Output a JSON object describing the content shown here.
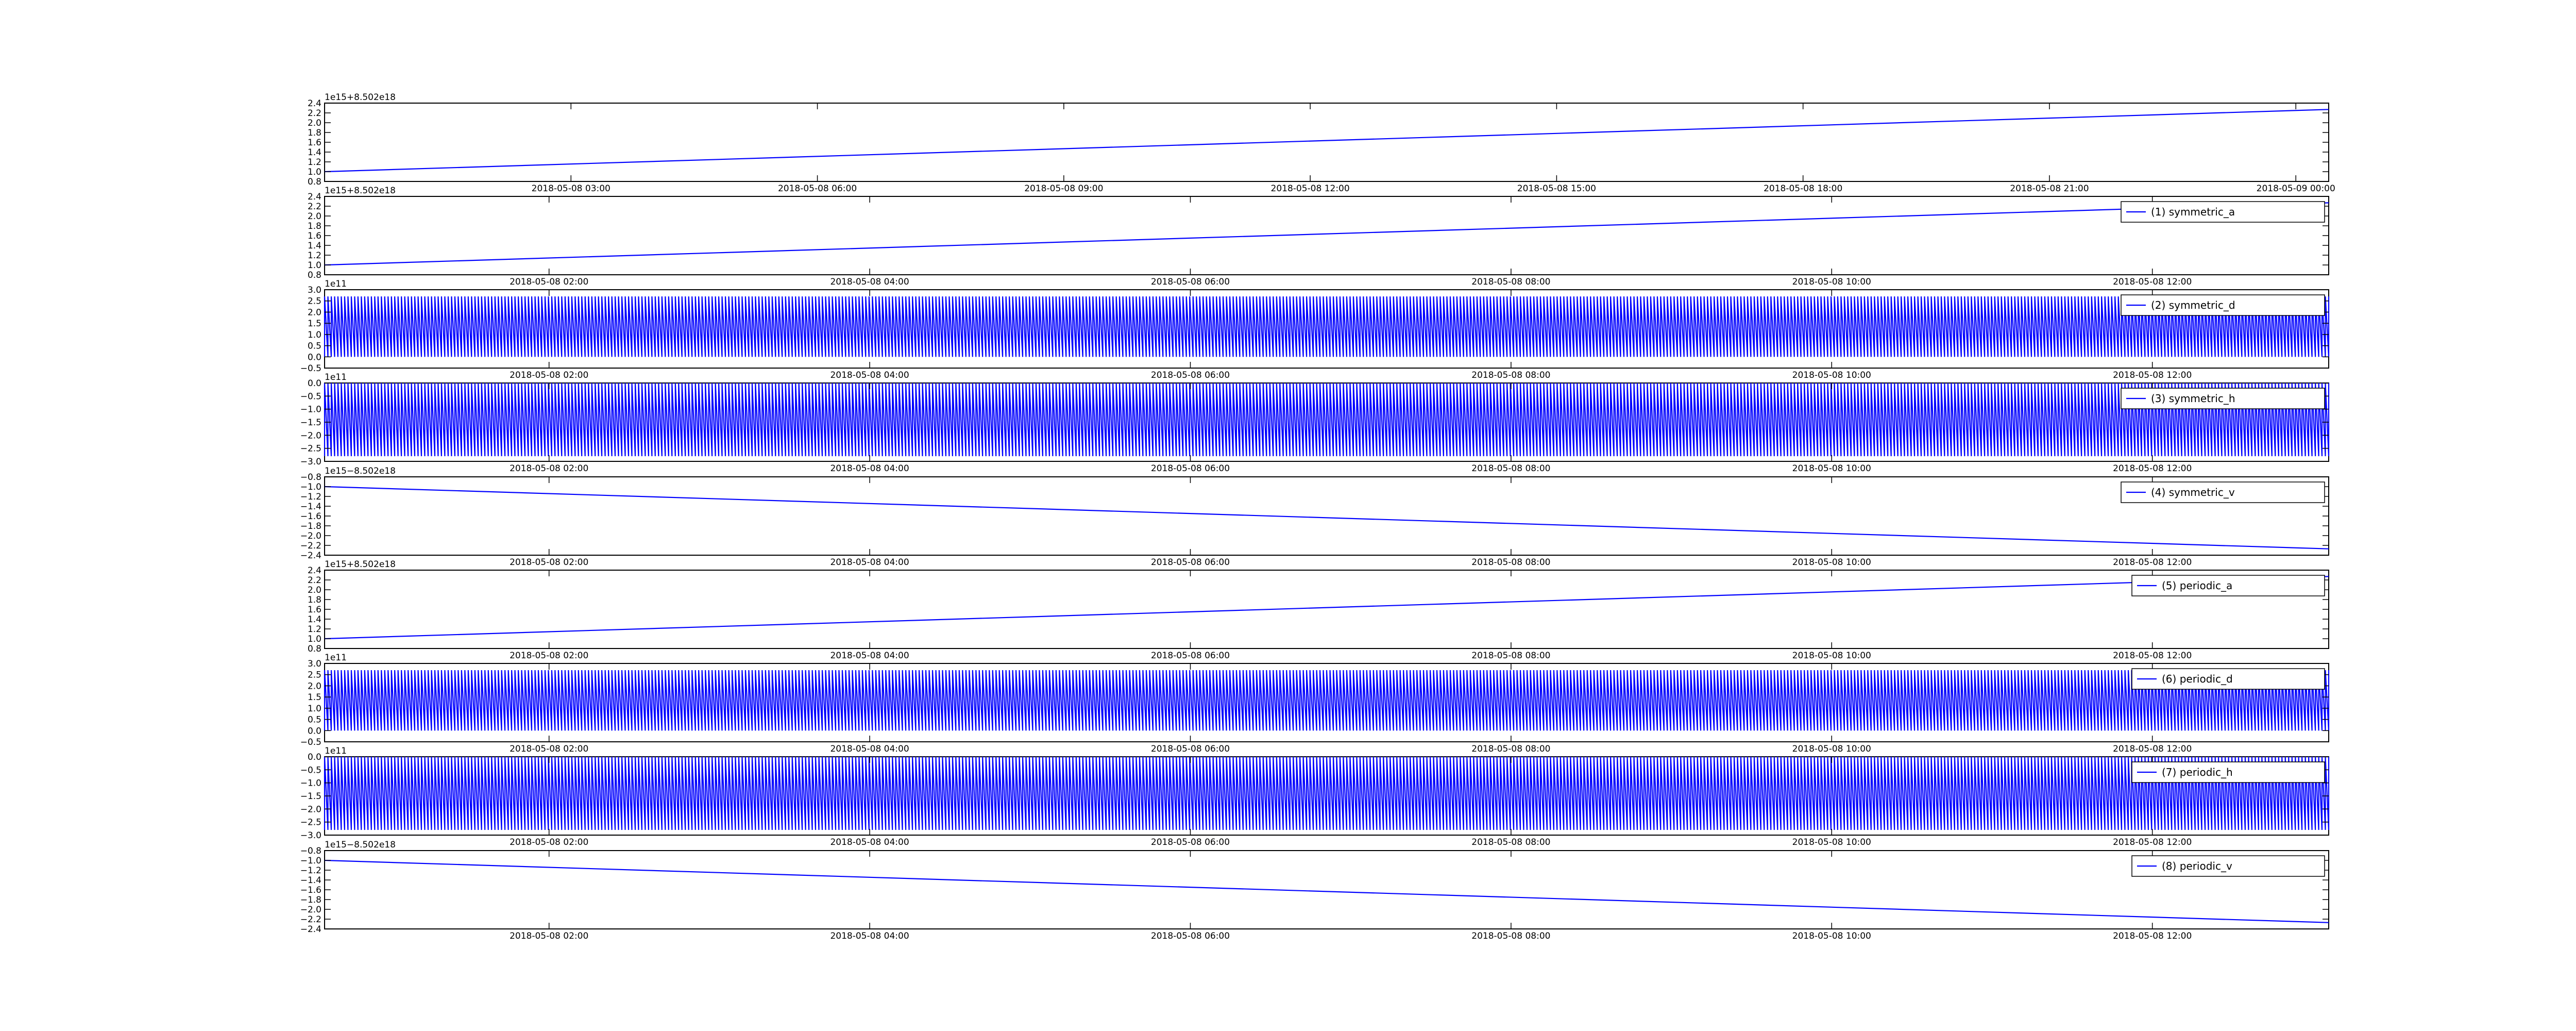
{
  "chart_data": [
    {
      "type": "line",
      "offset_label": "1e15+8.502e18",
      "y_ticks": [
        "0.8",
        "1.0",
        "1.2",
        "1.4",
        "1.6",
        "1.8",
        "2.0",
        "2.2",
        "2.4"
      ],
      "ylim": [
        0.8,
        2.4
      ],
      "x_ticks": [
        "2018-05-08 03:00",
        "2018-05-08 06:00",
        "2018-05-08 09:00",
        "2018-05-08 12:00",
        "2018-05-08 15:00",
        "2018-05-08 18:00",
        "2018-05-08 21:00",
        "2018-05-09 00:00"
      ],
      "xlim": [
        "2018-05-08 00:00",
        "2018-05-09 00:24"
      ],
      "series": [
        {
          "x": [
            "2018-05-08 00:00",
            "2018-05-09 00:24"
          ],
          "y": [
            1.0,
            2.27
          ]
        }
      ],
      "legend": null
    },
    {
      "type": "line",
      "offset_label": "1e15+8.502e18",
      "y_ticks": [
        "0.8",
        "1.0",
        "1.2",
        "1.4",
        "1.6",
        "1.8",
        "2.0",
        "2.2",
        "2.4"
      ],
      "ylim": [
        0.8,
        2.4
      ],
      "x_ticks": [
        "2018-05-08 02:00",
        "2018-05-08 04:00",
        "2018-05-08 06:00",
        "2018-05-08 08:00",
        "2018-05-08 10:00",
        "2018-05-08 12:00"
      ],
      "xlim": [
        "2018-05-08 00:36",
        "2018-05-08 13:06"
      ],
      "series": [
        {
          "name": "(1) symmetric_a",
          "x": [
            "2018-05-08 00:36",
            "2018-05-08 13:06"
          ],
          "y": [
            1.0,
            2.27
          ]
        }
      ],
      "legend": {
        "label": "(1) symmetric_a",
        "position": "top-right"
      }
    },
    {
      "type": "line",
      "offset_label": "1e11",
      "y_ticks": [
        "−0.5",
        "0.0",
        "0.5",
        "1.0",
        "1.5",
        "2.0",
        "2.5",
        "3.0"
      ],
      "ylim": [
        -0.5,
        3.0
      ],
      "x_ticks": [
        "2018-05-08 02:00",
        "2018-05-08 04:00",
        "2018-05-08 06:00",
        "2018-05-08 08:00",
        "2018-05-08 10:00",
        "2018-05-08 12:00"
      ],
      "xlim": [
        "2018-05-08 00:36",
        "2018-05-08 13:06"
      ],
      "series": [
        {
          "name": "(2) symmetric_d",
          "pattern": "dense oscillation between 0 and 2.7",
          "range": [
            0.0,
            2.7
          ]
        }
      ],
      "legend": {
        "label": "(2) symmetric_d",
        "position": "top-right"
      }
    },
    {
      "type": "line",
      "offset_label": "1e11",
      "y_ticks": [
        "−3.0",
        "−2.5",
        "−2.0",
        "−1.5",
        "−1.0",
        "−0.5",
        "0.0"
      ],
      "ylim": [
        -3.0,
        0.0
      ],
      "x_ticks": [
        "2018-05-08 02:00",
        "2018-05-08 04:00",
        "2018-05-08 06:00",
        "2018-05-08 08:00",
        "2018-05-08 10:00",
        "2018-05-08 12:00"
      ],
      "xlim": [
        "2018-05-08 00:36",
        "2018-05-08 13:06"
      ],
      "series": [
        {
          "name": "(3) symmetric_h",
          "pattern": "dense oscillation between -2.8 and 0",
          "range": [
            -2.8,
            0.0
          ]
        }
      ],
      "legend": {
        "label": "(3) symmetric_h",
        "position": "top-right"
      }
    },
    {
      "type": "line",
      "offset_label": "1e15−8.502e18",
      "y_ticks": [
        "−2.4",
        "−2.2",
        "−2.0",
        "−1.8",
        "−1.6",
        "−1.4",
        "−1.2",
        "−1.0",
        "−0.8"
      ],
      "ylim": [
        -2.4,
        -0.8
      ],
      "x_ticks": [
        "2018-05-08 02:00",
        "2018-05-08 04:00",
        "2018-05-08 06:00",
        "2018-05-08 08:00",
        "2018-05-08 10:00",
        "2018-05-08 12:00"
      ],
      "xlim": [
        "2018-05-08 00:36",
        "2018-05-08 13:06"
      ],
      "series": [
        {
          "name": "(4) symmetric_v",
          "x": [
            "2018-05-08 00:36",
            "2018-05-08 13:06"
          ],
          "y": [
            -1.0,
            -2.27
          ]
        }
      ],
      "legend": {
        "label": "(4) symmetric_v",
        "position": "top-right"
      }
    },
    {
      "type": "line",
      "offset_label": "1e15+8.502e18",
      "y_ticks": [
        "0.8",
        "1.0",
        "1.2",
        "1.4",
        "1.6",
        "1.8",
        "2.0",
        "2.2",
        "2.4"
      ],
      "ylim": [
        0.8,
        2.4
      ],
      "x_ticks": [
        "2018-05-08 02:00",
        "2018-05-08 04:00",
        "2018-05-08 06:00",
        "2018-05-08 08:00",
        "2018-05-08 10:00",
        "2018-05-08 12:00"
      ],
      "xlim": [
        "2018-05-08 00:36",
        "2018-05-08 13:06"
      ],
      "series": [
        {
          "name": "(5) periodic_a",
          "x": [
            "2018-05-08 00:36",
            "2018-05-08 13:06"
          ],
          "y": [
            1.0,
            2.27
          ]
        }
      ],
      "legend": {
        "label": "(5) periodic_a",
        "position": "top-right"
      }
    },
    {
      "type": "line",
      "offset_label": "1e11",
      "y_ticks": [
        "−0.5",
        "0.0",
        "0.5",
        "1.0",
        "1.5",
        "2.0",
        "2.5",
        "3.0"
      ],
      "ylim": [
        -0.5,
        3.0
      ],
      "x_ticks": [
        "2018-05-08 02:00",
        "2018-05-08 04:00",
        "2018-05-08 06:00",
        "2018-05-08 08:00",
        "2018-05-08 10:00",
        "2018-05-08 12:00"
      ],
      "xlim": [
        "2018-05-08 00:36",
        "2018-05-08 13:06"
      ],
      "series": [
        {
          "name": "(6) periodic_d",
          "pattern": "dense oscillation between 0 and 2.7",
          "range": [
            0.0,
            2.7
          ]
        }
      ],
      "legend": {
        "label": "(6) periodic_d",
        "position": "top-right"
      }
    },
    {
      "type": "line",
      "offset_label": "1e11",
      "y_ticks": [
        "−3.0",
        "−2.5",
        "−2.0",
        "−1.5",
        "−1.0",
        "−0.5",
        "0.0"
      ],
      "ylim": [
        -3.0,
        0.0
      ],
      "x_ticks": [
        "2018-05-08 02:00",
        "2018-05-08 04:00",
        "2018-05-08 06:00",
        "2018-05-08 08:00",
        "2018-05-08 10:00",
        "2018-05-08 12:00"
      ],
      "xlim": [
        "2018-05-08 00:36",
        "2018-05-08 13:06"
      ],
      "series": [
        {
          "name": "(7) periodic_h",
          "pattern": "dense oscillation between -2.8 and 0",
          "range": [
            -2.8,
            0.0
          ]
        }
      ],
      "legend": {
        "label": "(7) periodic_h",
        "position": "top-right"
      }
    },
    {
      "type": "line",
      "offset_label": "1e15−8.502e18",
      "y_ticks": [
        "−2.4",
        "−2.2",
        "−2.0",
        "−1.8",
        "−1.6",
        "−1.4",
        "−1.2",
        "−1.0",
        "−0.8"
      ],
      "ylim": [
        -2.4,
        -0.8
      ],
      "x_ticks": [
        "2018-05-08 02:00",
        "2018-05-08 04:00",
        "2018-05-08 06:00",
        "2018-05-08 08:00",
        "2018-05-08 10:00",
        "2018-05-08 12:00"
      ],
      "xlim": [
        "2018-05-08 00:36",
        "2018-05-08 13:06"
      ],
      "series": [
        {
          "name": "(8) periodic_v",
          "x": [
            "2018-05-08 00:36",
            "2018-05-08 13:06"
          ],
          "y": [
            -1.0,
            -2.27
          ]
        }
      ],
      "legend": {
        "label": "(8) periodic_v",
        "position": "top-right"
      }
    }
  ],
  "colors": {
    "line": "#0000ff",
    "axes": "#000000",
    "background": "#ffffff"
  }
}
